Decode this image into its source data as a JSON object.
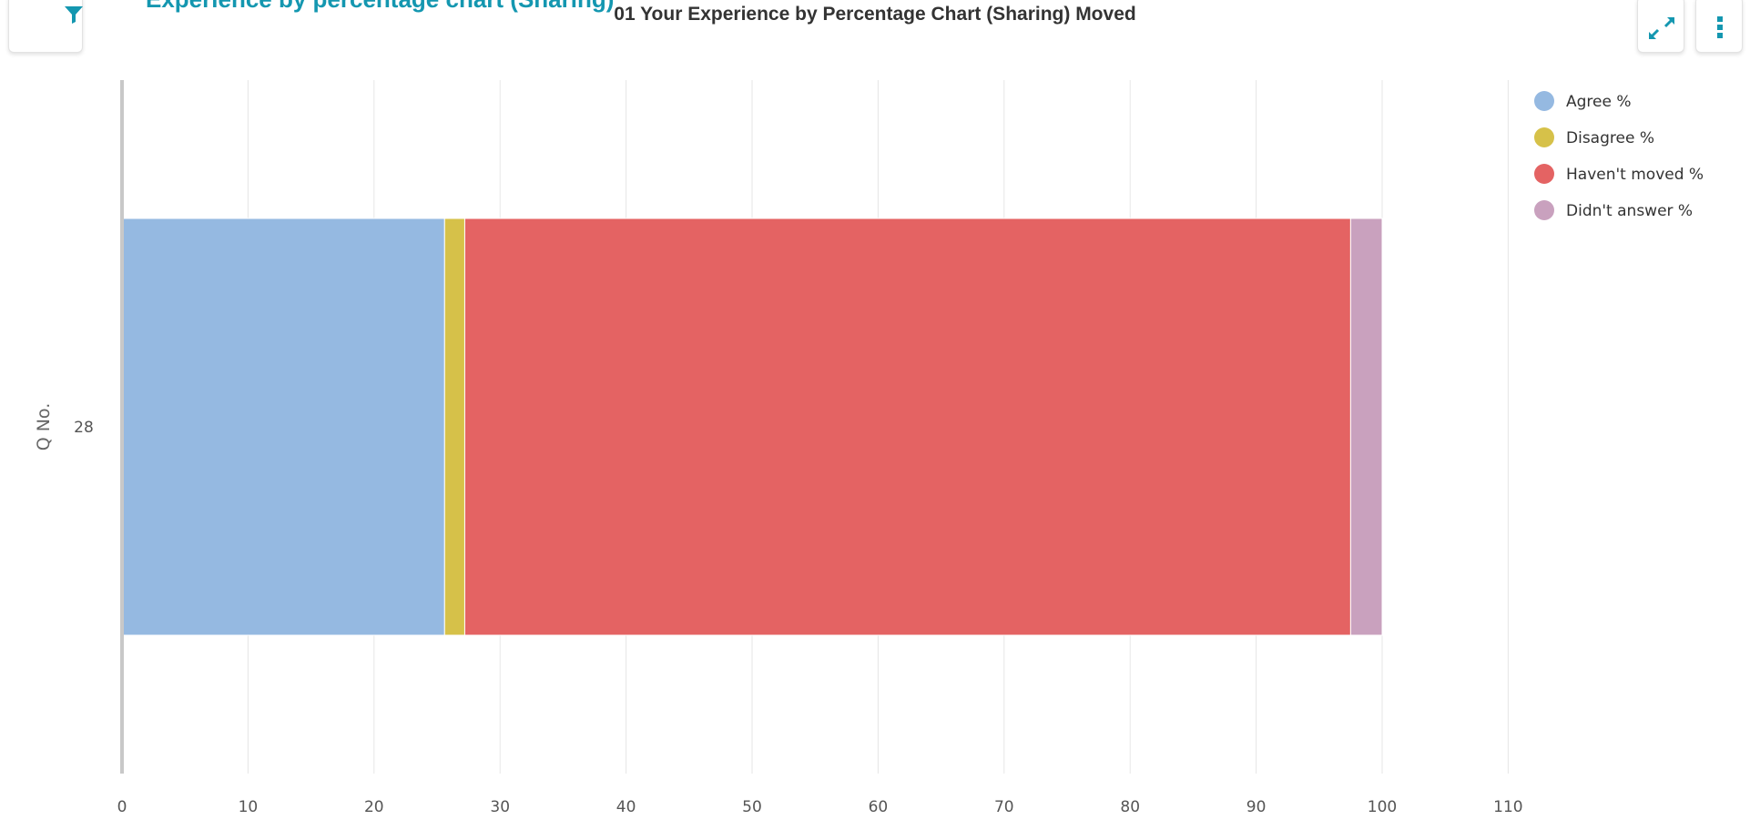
{
  "header": {
    "partial_title": "Experience by percentage chart (Sharing)"
  },
  "chart": {
    "title": "01 Your Experience by Percentage Chart (Sharing) Moved"
  },
  "icons": {
    "filter": "filter-icon",
    "expand": "expand-icon",
    "menu": "kebab-menu-icon"
  },
  "colors": {
    "accent": "#1497b0",
    "agree": "#95b9e1",
    "disagree": "#d6c149",
    "havent_moved": "#e46363",
    "didnt_answer": "#c9a1be"
  },
  "chart_data": {
    "type": "bar",
    "orientation": "horizontal",
    "stacked": true,
    "title": "01 Your Experience by Percentage Chart (Sharing) Moved",
    "ylabel": "Q No.",
    "xlabel": "",
    "categories": [
      "28"
    ],
    "x_ticks": [
      "0",
      "10",
      "20",
      "30",
      "40",
      "50",
      "60",
      "70",
      "80",
      "90",
      "100",
      "110"
    ],
    "xlim": [
      0,
      110
    ],
    "grid": true,
    "legend_position": "top-right",
    "series": [
      {
        "name": "Agree %",
        "values": [
          25.6
        ],
        "color": "#95b9e1"
      },
      {
        "name": "Disagree %",
        "values": [
          1.6
        ],
        "color": "#d6c149"
      },
      {
        "name": "Haven't moved %",
        "values": [
          70.3
        ],
        "color": "#e46363"
      },
      {
        "name": "Didn't answer %",
        "values": [
          2.5
        ],
        "color": "#c9a1be"
      }
    ]
  }
}
